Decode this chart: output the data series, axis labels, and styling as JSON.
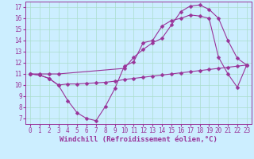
{
  "title": "",
  "xlabel": "Windchill (Refroidissement éolien,°C)",
  "ylabel": "",
  "bg_color": "#cceeff",
  "grid_color": "#aaddcc",
  "line_color": "#993399",
  "xlim": [
    -0.5,
    23.5
  ],
  "ylim": [
    6.5,
    17.5
  ],
  "xticks": [
    0,
    1,
    2,
    3,
    4,
    5,
    6,
    7,
    8,
    9,
    10,
    11,
    12,
    13,
    14,
    15,
    16,
    17,
    18,
    19,
    20,
    21,
    22,
    23
  ],
  "yticks": [
    7,
    8,
    9,
    10,
    11,
    12,
    13,
    14,
    15,
    16,
    17
  ],
  "series": [
    {
      "x": [
        0,
        1,
        2,
        3,
        4,
        5,
        6,
        7,
        8,
        9,
        10,
        11,
        12,
        13,
        14,
        15,
        16,
        17,
        18,
        19,
        20,
        21,
        22,
        23
      ],
      "y": [
        11,
        10.9,
        10.6,
        10.0,
        10.1,
        10.1,
        10.15,
        10.2,
        10.25,
        10.35,
        10.5,
        10.6,
        10.7,
        10.8,
        10.9,
        11.0,
        11.1,
        11.2,
        11.3,
        11.4,
        11.5,
        11.6,
        11.7,
        11.8
      ]
    },
    {
      "x": [
        0,
        1,
        2,
        3,
        4,
        5,
        6,
        7,
        8,
        9,
        10,
        11,
        12,
        13,
        14,
        15,
        16,
        17,
        18,
        19,
        20,
        21,
        22,
        23
      ],
      "y": [
        11,
        10.9,
        10.6,
        10.0,
        8.6,
        7.5,
        7.0,
        6.8,
        8.1,
        9.7,
        11.7,
        12.1,
        13.8,
        14.0,
        15.3,
        15.8,
        16.0,
        16.3,
        16.2,
        16.0,
        12.5,
        11.0,
        9.8,
        11.8
      ]
    },
    {
      "x": [
        0,
        1,
        2,
        3,
        10,
        11,
        12,
        13,
        14,
        15,
        16,
        17,
        18,
        19,
        20,
        21,
        22,
        23
      ],
      "y": [
        11,
        11.0,
        11.0,
        11.0,
        11.5,
        12.5,
        13.2,
        13.8,
        14.2,
        15.4,
        16.6,
        17.1,
        17.2,
        16.8,
        16.0,
        14.0,
        12.4,
        11.8
      ]
    }
  ],
  "marker": "D",
  "marker_size": 2.5,
  "font_size_ticks": 5.5,
  "font_size_label": 6.5
}
